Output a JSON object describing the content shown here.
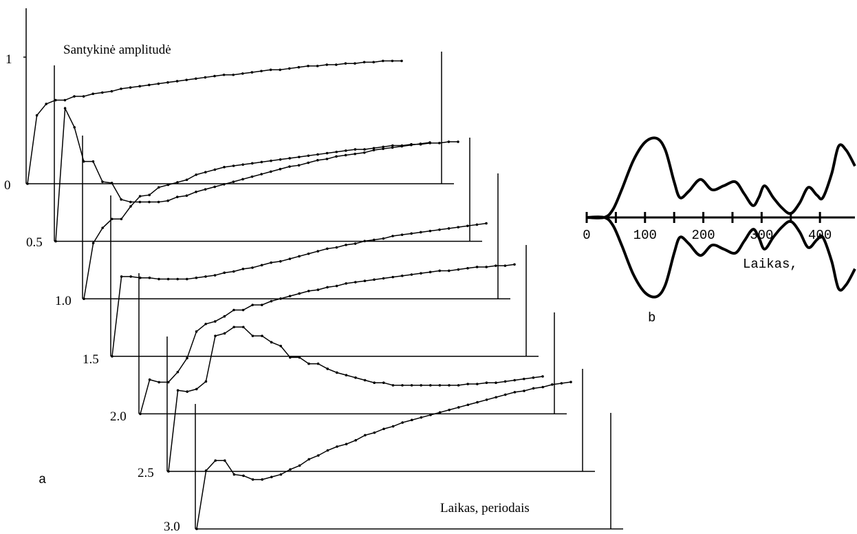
{
  "colors": {
    "ink": "#000000",
    "background": "#ffffff"
  },
  "chart_data": [
    {
      "panel": "a",
      "type": "line",
      "title": "Santykinė amplitudė",
      "xlabel": "Laikas, periodais",
      "ylabel": "Santykinė amplitudė",
      "offset_labels": [
        "1",
        "0",
        "0.5",
        "1.0",
        "1.5",
        "2.0",
        "2.5",
        "3.0"
      ],
      "x": [
        0,
        1,
        2,
        3,
        4,
        5,
        6,
        7,
        8,
        9,
        10,
        11,
        12,
        13,
        14,
        15,
        16,
        17,
        18,
        19,
        20,
        21,
        22,
        23,
        24,
        25,
        26,
        27,
        28,
        29,
        30,
        31,
        32,
        33,
        34,
        35,
        36,
        37,
        38,
        39,
        40
      ],
      "series": [
        {
          "offset": 0.0,
          "values": [
            0.0,
            0.54,
            0.63,
            0.66,
            0.66,
            0.69,
            0.69,
            0.71,
            0.72,
            0.73,
            0.75,
            0.76,
            0.77,
            0.78,
            0.79,
            0.8,
            0.81,
            0.82,
            0.83,
            0.84,
            0.85,
            0.86,
            0.86,
            0.87,
            0.88,
            0.89,
            0.9,
            0.9,
            0.91,
            0.92,
            0.93,
            0.93,
            0.94,
            0.94,
            0.95,
            0.95,
            0.96,
            0.96,
            0.97,
            0.97,
            0.97
          ]
        },
        {
          "offset": 0.5,
          "values": [
            0.0,
            1.05,
            0.9,
            0.63,
            0.63,
            0.47,
            0.46,
            0.33,
            0.31,
            0.31,
            0.31,
            0.31,
            0.32,
            0.35,
            0.36,
            0.39,
            0.41,
            0.43,
            0.45,
            0.47,
            0.49,
            0.51,
            0.53,
            0.55,
            0.57,
            0.59,
            0.6,
            0.62,
            0.64,
            0.65,
            0.67,
            0.68,
            0.69,
            0.7,
            0.72,
            0.73,
            0.74,
            0.75,
            0.76,
            0.77,
            0.78
          ]
        },
        {
          "offset": 1.0,
          "values": [
            0.0,
            0.44,
            0.56,
            0.63,
            0.63,
            0.73,
            0.81,
            0.82,
            0.88,
            0.9,
            0.92,
            0.94,
            0.98,
            1.0,
            1.02,
            1.04,
            1.05,
            1.06,
            1.07,
            1.08,
            1.09,
            1.1,
            1.11,
            1.12,
            1.13,
            1.14,
            1.15,
            1.16,
            1.17,
            1.18,
            1.18,
            1.19,
            1.2,
            1.21,
            1.21,
            1.22,
            1.22,
            1.23,
            1.23,
            1.24,
            1.24
          ]
        },
        {
          "offset": 1.5,
          "values": [
            0.0,
            0.63,
            0.63,
            0.62,
            0.62,
            0.61,
            0.61,
            0.61,
            0.61,
            0.62,
            0.63,
            0.64,
            0.66,
            0.67,
            0.69,
            0.7,
            0.72,
            0.74,
            0.75,
            0.77,
            0.79,
            0.81,
            0.83,
            0.85,
            0.86,
            0.88,
            0.89,
            0.91,
            0.92,
            0.93,
            0.95,
            0.96,
            0.97,
            0.98,
            0.99,
            1.0,
            1.01,
            1.02,
            1.03,
            1.04,
            1.05
          ]
        },
        {
          "offset": 2.0,
          "values": [
            0.0,
            0.27,
            0.25,
            0.25,
            0.33,
            0.44,
            0.65,
            0.71,
            0.73,
            0.77,
            0.82,
            0.82,
            0.86,
            0.86,
            0.89,
            0.91,
            0.93,
            0.95,
            0.97,
            0.98,
            1.0,
            1.01,
            1.03,
            1.04,
            1.05,
            1.06,
            1.07,
            1.08,
            1.09,
            1.1,
            1.11,
            1.12,
            1.13,
            1.13,
            1.14,
            1.15,
            1.16,
            1.16,
            1.17,
            1.17,
            1.18
          ]
        },
        {
          "offset": 2.5,
          "values": [
            0.0,
            0.64,
            0.63,
            0.65,
            0.71,
            1.07,
            1.09,
            1.14,
            1.14,
            1.07,
            1.07,
            1.02,
            0.99,
            0.9,
            0.9,
            0.85,
            0.85,
            0.81,
            0.78,
            0.76,
            0.74,
            0.72,
            0.7,
            0.7,
            0.68,
            0.68,
            0.68,
            0.68,
            0.68,
            0.68,
            0.68,
            0.68,
            0.69,
            0.69,
            0.7,
            0.7,
            0.71,
            0.72,
            0.73,
            0.74,
            0.75
          ]
        },
        {
          "offset": 3.0,
          "values": [
            0.0,
            0.46,
            0.54,
            0.54,
            0.43,
            0.42,
            0.39,
            0.39,
            0.41,
            0.43,
            0.47,
            0.5,
            0.55,
            0.58,
            0.62,
            0.65,
            0.67,
            0.7,
            0.74,
            0.76,
            0.79,
            0.81,
            0.84,
            0.86,
            0.88,
            0.9,
            0.92,
            0.94,
            0.96,
            0.98,
            1.0,
            1.02,
            1.04,
            1.06,
            1.08,
            1.09,
            1.11,
            1.12,
            1.14,
            1.15,
            1.16
          ]
        }
      ]
    },
    {
      "panel": "b",
      "type": "line",
      "xlabel": "Laikas,",
      "xticks": [
        "0",
        "100",
        "200",
        "300",
        "400"
      ],
      "xlim": [
        0,
        460
      ],
      "ylim": [
        -1,
        1
      ],
      "envelope": {
        "x": [
          0,
          30,
          45,
          60,
          80,
          100,
          120,
          135,
          150,
          160,
          175,
          195,
          215,
          235,
          255,
          270,
          285,
          295,
          305,
          320,
          335,
          350,
          365,
          380,
          395,
          405,
          420,
          432,
          445,
          460
        ],
        "values": [
          0.0,
          0.0,
          0.1,
          0.35,
          0.72,
          0.95,
          1.0,
          0.85,
          0.45,
          0.25,
          0.33,
          0.48,
          0.35,
          0.4,
          0.45,
          0.3,
          0.15,
          0.25,
          0.4,
          0.25,
          0.12,
          0.05,
          0.18,
          0.38,
          0.28,
          0.25,
          0.55,
          0.9,
          0.85,
          0.65
        ]
      }
    }
  ],
  "labels": {
    "panel_a": "a",
    "panel_b": "b"
  }
}
